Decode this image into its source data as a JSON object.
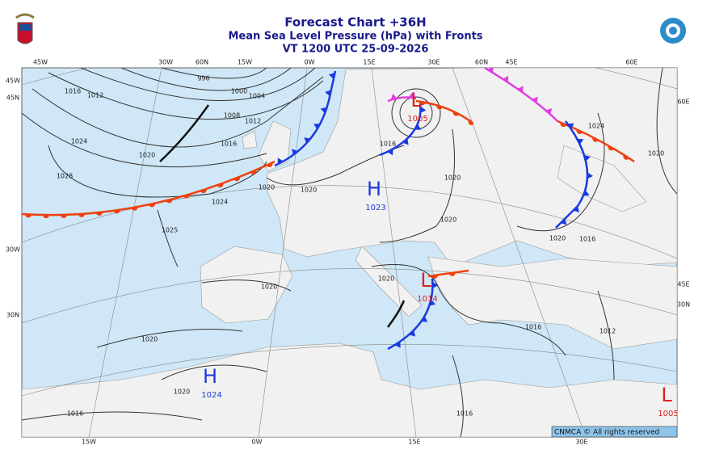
{
  "header": {
    "title": "Forecast Chart +36H",
    "subtitle": "Mean Sea Level Pressure (hPa) with Fronts",
    "valid_time": "VT 1200 UTC 25-09-2026"
  },
  "coordinates": {
    "top": [
      "45W",
      "30W",
      "60N",
      "15W",
      "0W",
      "15E",
      "30E",
      "60N",
      "45E",
      "60E"
    ],
    "left": [
      "45W",
      "45N",
      "30W",
      "30N"
    ],
    "right": [
      "60E",
      "45E",
      "30N"
    ],
    "bottom": [
      "15W",
      "0W",
      "15E",
      "30E"
    ]
  },
  "pressure_centers": [
    {
      "symbol": "H",
      "pressure": 1023
    },
    {
      "symbol": "L",
      "pressure": 1005
    },
    {
      "symbol": "L",
      "pressure": 1014
    },
    {
      "symbol": "H",
      "pressure": 1024
    },
    {
      "symbol": "L",
      "pressure": 1005
    }
  ],
  "isobar_labels": [
    996,
    1000,
    1004,
    1008,
    1012,
    1016,
    1020,
    1024,
    1028,
    1016,
    1012,
    1024,
    1025,
    1020,
    1020,
    1016,
    1020,
    1020,
    1020,
    1016,
    1024,
    1020,
    1020,
    1020,
    1020,
    1020,
    1016,
    1016,
    1016,
    1012
  ],
  "credit": "CNMCA © All rights reserved"
}
